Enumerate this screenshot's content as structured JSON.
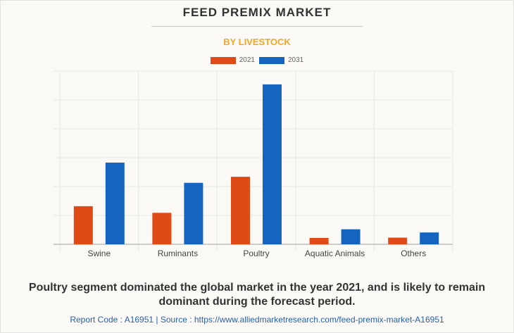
{
  "header": {
    "title": "FEED PREMIX MARKET",
    "subtitle": "BY LIVESTOCK"
  },
  "colors": {
    "series_2021": "#e04a16",
    "series_2031": "#1565c0",
    "subtitle": "#f5a623",
    "source_link": "#2a5fa8"
  },
  "chart_data": {
    "type": "bar",
    "title": "FEED PREMIX MARKET",
    "subtitle": "BY LIVESTOCK",
    "xlabel": "",
    "ylabel": "",
    "y_units": "relative (gridline units; no axis tick labels shown)",
    "ylim": [
      0,
      6
    ],
    "grid": true,
    "legend_position": "top-center",
    "categories": [
      "Swine",
      "Ruminants",
      "Poultry",
      "Aquatic Animals",
      "Others"
    ],
    "series": [
      {
        "name": "2021",
        "color": "#e04a16",
        "values": [
          1.32,
          1.09,
          2.34,
          0.22,
          0.23
        ]
      },
      {
        "name": "2031",
        "color": "#1565c0",
        "values": [
          2.83,
          2.13,
          5.54,
          0.52,
          0.41
        ]
      }
    ]
  },
  "caption": "Poultry segment dominated the global market in the year 2021, and is likely to remain dominant during the forecast period.",
  "source": {
    "text": "Report Code : A16951  |  Source : https://www.alliedmarketresearch.com/feed-premix-market-A16951"
  }
}
